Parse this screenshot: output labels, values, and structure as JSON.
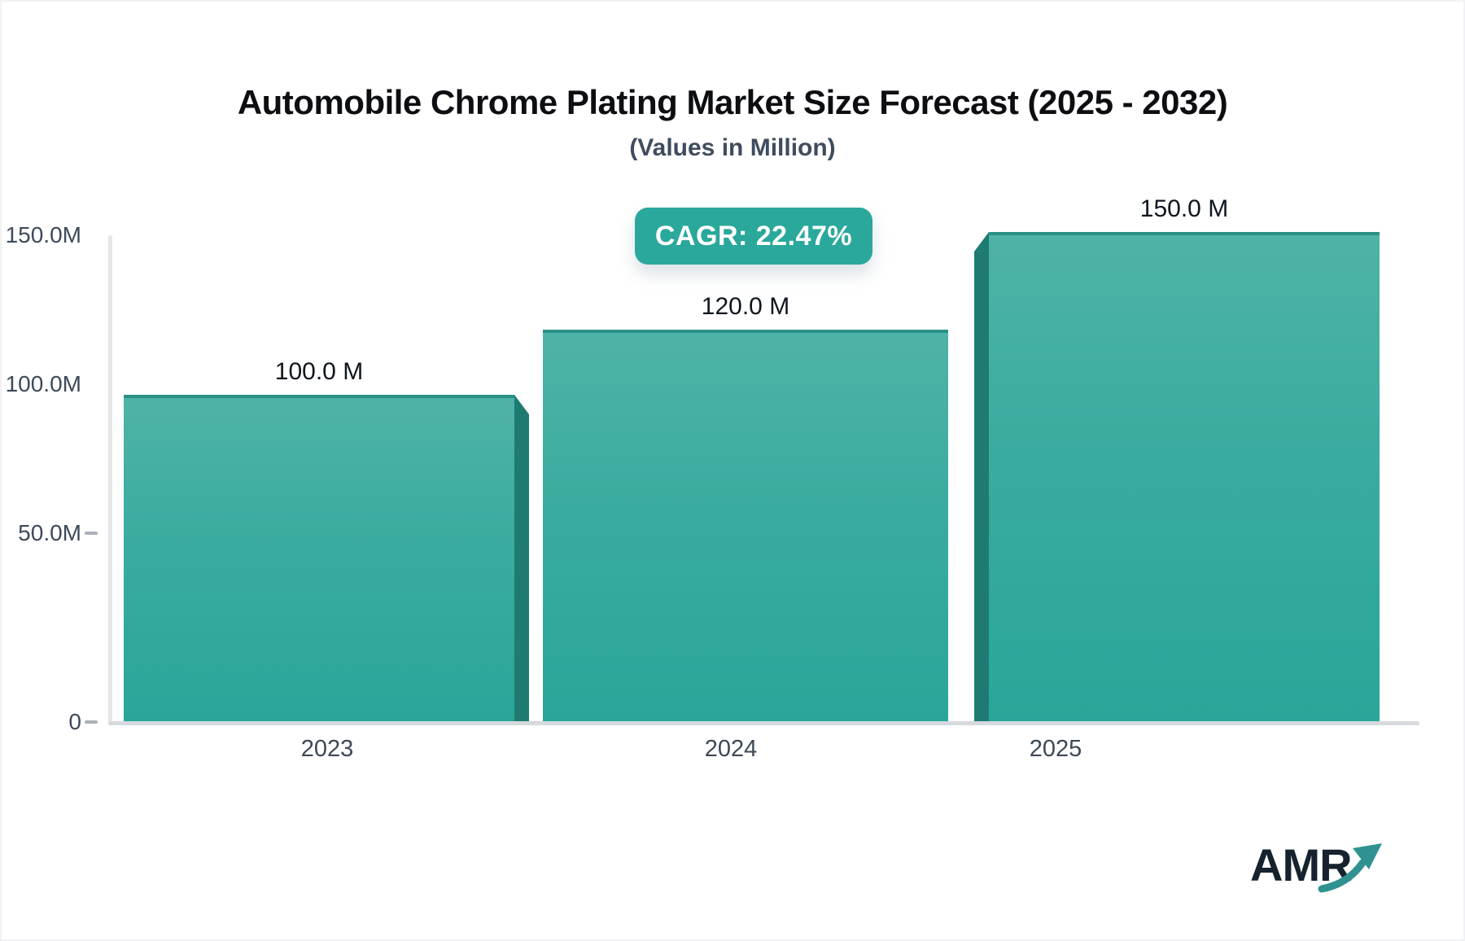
{
  "header": {
    "title": "Automobile Chrome Plating Market Size Forecast (2025 - 2032)",
    "subtitle": "(Values in Million)"
  },
  "badge": {
    "label": "CAGR: 22.47%"
  },
  "chart_data": {
    "type": "bar",
    "title": "Automobile Chrome Plating Market Size Forecast (2025 - 2032)",
    "subtitle": "(Values in Million)",
    "annotation": "CAGR: 22.47%",
    "categories": [
      "2023",
      "2024",
      "2025"
    ],
    "values": [
      100.0,
      120.0,
      150.0
    ],
    "unit": "Million",
    "bar_labels": [
      "100.0 M",
      "120.0 M",
      "150.0 M"
    ],
    "yticks": [
      "150.0M",
      "100.0M",
      "50.0M",
      "0"
    ],
    "ylim": [
      0,
      150
    ],
    "xlabel": "",
    "ylabel": "",
    "grid": false,
    "legend": false,
    "colors": {
      "bar_top": "#4fb3a7",
      "bar_bottom": "#29a699",
      "bar_side_3d": "#1f7b72",
      "badge": "#2aa89b",
      "axis": "#d6d9de"
    }
  },
  "logo": {
    "text": "AMR",
    "arrow_color": "#2f9290"
  }
}
